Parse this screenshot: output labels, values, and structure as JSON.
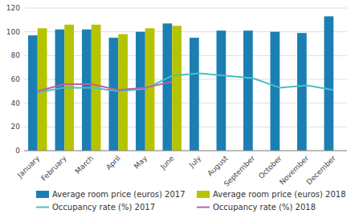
{
  "chart_data": {
    "type": "bar",
    "categories": [
      "January",
      "February",
      "March",
      "April",
      "May",
      "June",
      "July",
      "August",
      "September",
      "October",
      "November",
      "December"
    ],
    "series": [
      {
        "name": "Average room price (euros) 2017",
        "type": "bar",
        "color": "#1b7fb4",
        "values": [
          97,
          102,
          102,
          95,
          100,
          107,
          95,
          101,
          101,
          100,
          99,
          113
        ]
      },
      {
        "name": "Average room price (euros) 2018",
        "type": "bar",
        "color": "#b5c400",
        "values": [
          103,
          106,
          106,
          98,
          103,
          105,
          null,
          null,
          null,
          null,
          null,
          null
        ]
      },
      {
        "name": "Occupancy rate (%) 2017",
        "type": "line",
        "color": "#4bbfbf",
        "values": [
          49,
          53,
          53,
          50,
          52,
          63,
          65,
          63,
          61,
          53,
          55,
          51
        ]
      },
      {
        "name": "Occupancy rate (%) 2018",
        "type": "line",
        "color": "#c060a0",
        "values": [
          50,
          56,
          56,
          51,
          53,
          58,
          null,
          null,
          null,
          null,
          null,
          null
        ]
      }
    ],
    "ylim": [
      0,
      120
    ],
    "yticks": [
      0,
      20,
      40,
      60,
      80,
      100,
      120
    ],
    "grid": true,
    "legend": "bottom"
  }
}
